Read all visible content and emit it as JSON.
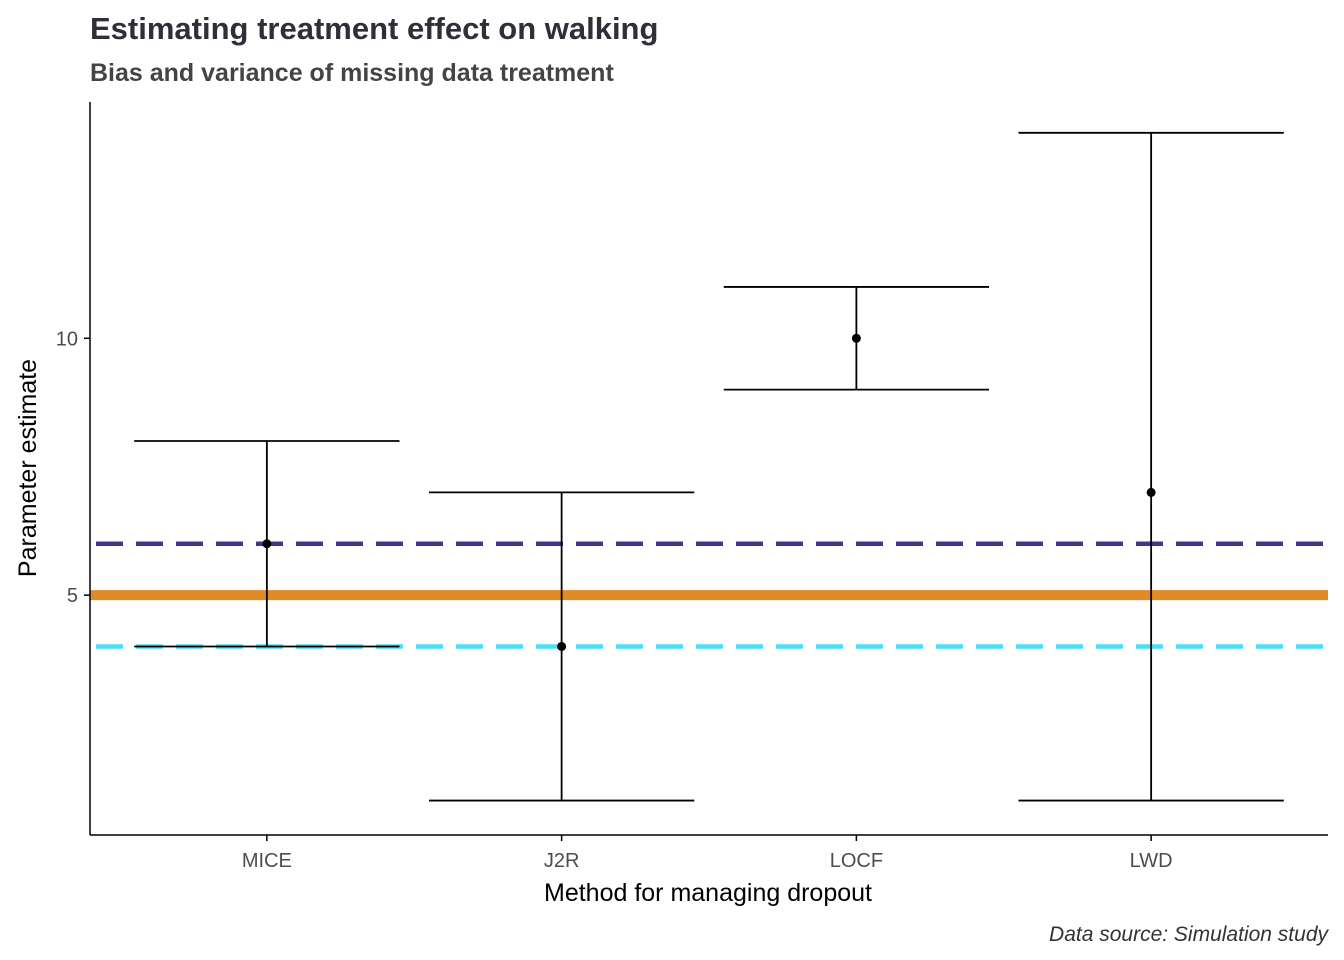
{
  "chart_data": {
    "type": "errorbar",
    "title": "Estimating treatment effect on walking",
    "subtitle": "Bias and variance of missing data treatment",
    "xlabel": "Method for managing dropout",
    "ylabel": "Parameter estimate",
    "caption": "Data source: Simulation study",
    "categories": [
      "MICE",
      "J2R",
      "LOCF",
      "LWD"
    ],
    "estimates": [
      6,
      4,
      10,
      7
    ],
    "lower": [
      4,
      1,
      9,
      1
    ],
    "upper": [
      8,
      7,
      11,
      14
    ],
    "y_ticks": [
      5,
      10
    ],
    "ylim": [
      0.33,
      14.6
    ],
    "reference_lines": [
      {
        "value": 5,
        "style": "solid",
        "color": "#E08B27"
      },
      {
        "value": 6,
        "style": "dashed",
        "color": "#45348F"
      },
      {
        "value": 4,
        "style": "dashed",
        "color": "#4EDDF7"
      }
    ],
    "grid": false,
    "legend": "none"
  }
}
